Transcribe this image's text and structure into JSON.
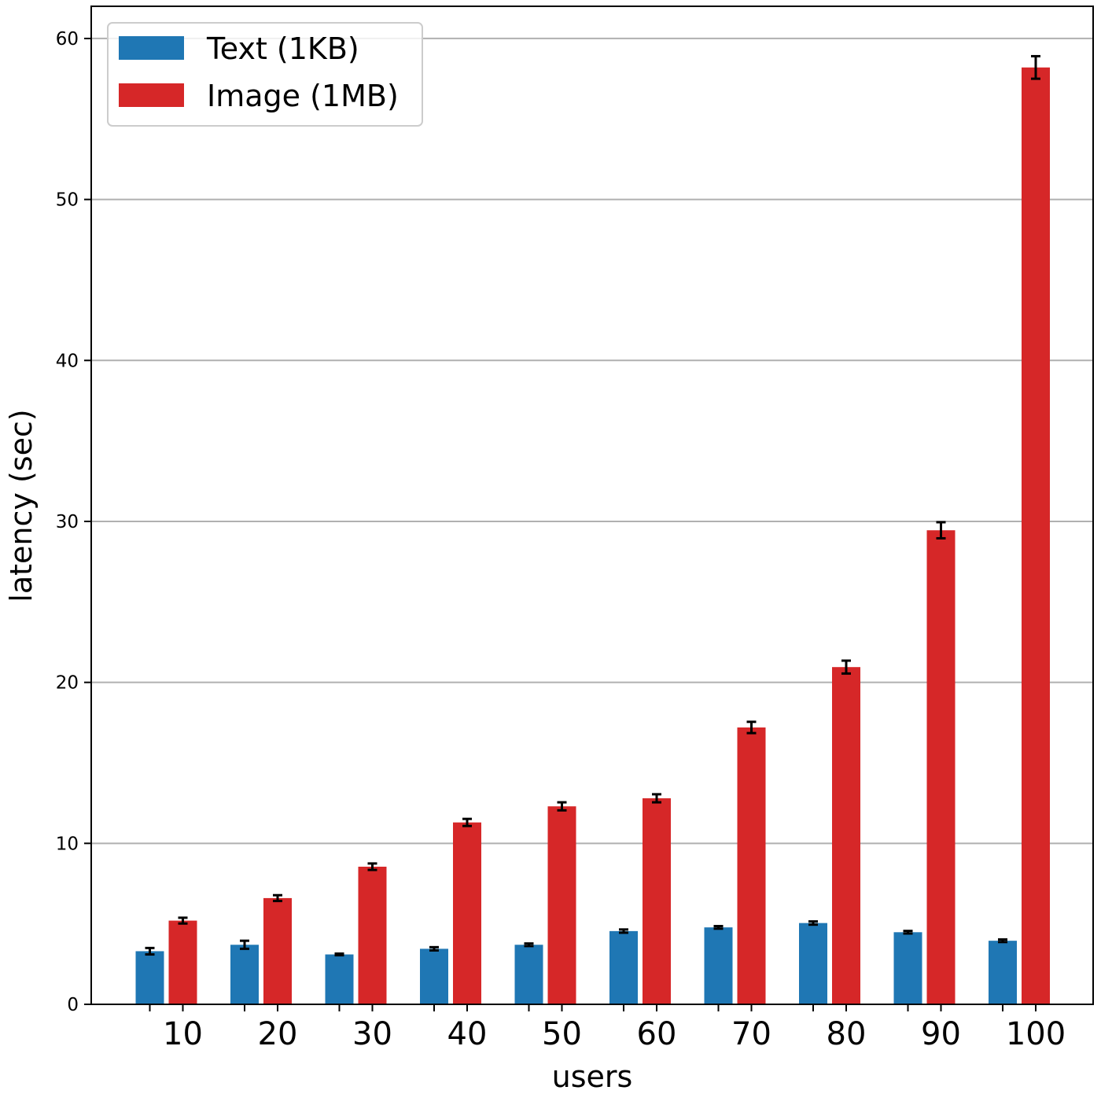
{
  "chart_data": {
    "type": "bar",
    "xlabel": "users",
    "ylabel": "latency (sec)",
    "categories": [
      "10",
      "20",
      "30",
      "40",
      "50",
      "60",
      "70",
      "80",
      "90",
      "100"
    ],
    "ylim": [
      0,
      62
    ],
    "yticks": [
      "0",
      "10",
      "20",
      "30",
      "40",
      "50",
      "60"
    ],
    "grid": "horizontal",
    "legend_position": "top-left",
    "series": [
      {
        "name": "Text (1KB)",
        "color": "#1f77b4",
        "values": [
          3.3,
          3.7,
          3.1,
          3.45,
          3.7,
          4.55,
          4.78,
          5.05,
          4.48,
          3.95
        ],
        "errors": [
          0.2,
          0.25,
          0.05,
          0.1,
          0.08,
          0.1,
          0.08,
          0.1,
          0.08,
          0.08
        ]
      },
      {
        "name": "Image (1MB)",
        "color": "#d62728",
        "values": [
          5.2,
          6.6,
          8.55,
          11.3,
          12.3,
          12.8,
          17.2,
          20.95,
          29.45,
          58.2
        ],
        "errors": [
          0.18,
          0.18,
          0.2,
          0.22,
          0.25,
          0.25,
          0.35,
          0.4,
          0.5,
          0.7
        ]
      }
    ]
  }
}
